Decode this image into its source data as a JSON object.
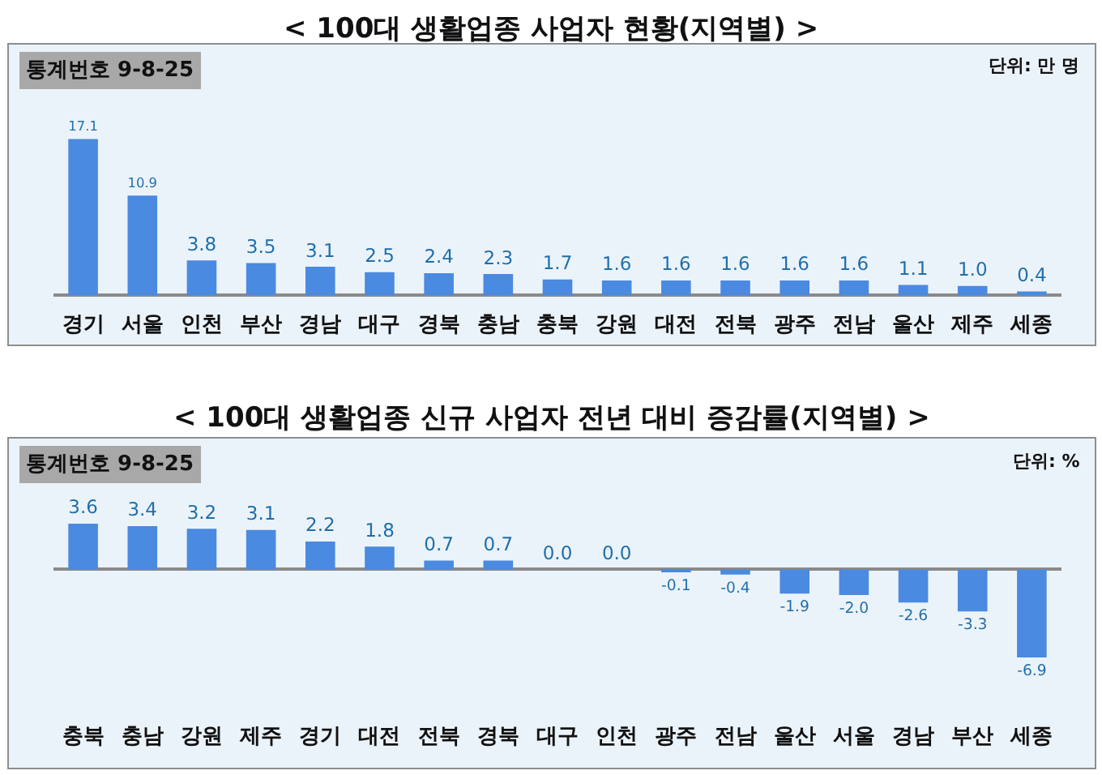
{
  "chart_data": [
    {
      "type": "bar",
      "title": "< 100대 생활업종 사업자 현황(지역별) >",
      "annotations": [
        "통계번호 9-8-25",
        "단위: 만 명"
      ],
      "categories": [
        "경기",
        "서울",
        "인천",
        "부산",
        "경남",
        "대구",
        "경북",
        "충남",
        "충북",
        "강원",
        "대전",
        "전북",
        "광주",
        "전남",
        "울산",
        "제주",
        "세종"
      ],
      "values": [
        17.1,
        10.9,
        3.8,
        3.5,
        3.1,
        2.5,
        2.4,
        2.3,
        1.7,
        1.6,
        1.6,
        1.6,
        1.6,
        1.6,
        1.1,
        1.0,
        0.4
      ],
      "value_labels": [
        "17.1",
        "10.9",
        "3.8",
        "3.5",
        "3.1",
        "2.5",
        "2.4",
        "2.3",
        "1.7",
        "1.6",
        "1.6",
        "1.6",
        "1.6",
        "1.6",
        "1.1",
        "1.0",
        "0.4"
      ],
      "color": "#4a8ae0"
    },
    {
      "type": "bar",
      "title": "< 100대 생활업종 신규 사업자 전년 대비 증감률(지역별) >",
      "annotations": [
        "통계번호 9-8-25",
        "단위: %"
      ],
      "categories": [
        "충북",
        "충남",
        "강원",
        "제주",
        "경기",
        "대전",
        "전북",
        "경북",
        "대구",
        "인천",
        "광주",
        "전남",
        "울산",
        "서울",
        "경남",
        "부산",
        "세종"
      ],
      "values": [
        3.6,
        3.4,
        3.2,
        3.1,
        2.2,
        1.8,
        0.7,
        0.7,
        0.0,
        0.0,
        -0.1,
        -0.4,
        -1.9,
        -2.0,
        -2.6,
        -3.3,
        -6.9
      ],
      "value_labels": [
        "3.6",
        "3.4",
        "3.2",
        "3.1",
        "2.2",
        "1.8",
        "0.7",
        "0.7",
        "0.0",
        "0.0",
        "-0.1",
        "-0.4",
        "-1.9",
        "-2.0",
        "-2.6",
        "-3.3",
        "-6.9"
      ],
      "color": "#4a8ae0"
    }
  ]
}
